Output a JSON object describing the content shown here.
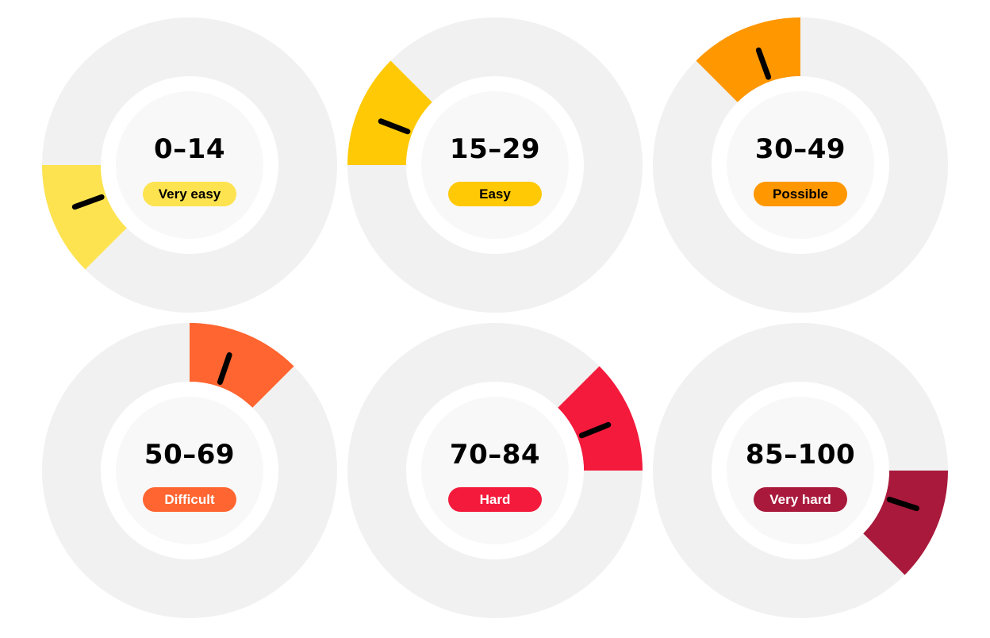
{
  "gauges": [
    {
      "range": "0–14",
      "label": "Very easy",
      "color": "#FDE34F",
      "text_color": "#000000"
    },
    {
      "range": "15–29",
      "label": "Easy",
      "color": "#FFC905",
      "text_color": "#000000"
    },
    {
      "range": "30–49",
      "label": "Possible",
      "color": "#FF9700",
      "text_color": "#000000"
    },
    {
      "range": "50–69",
      "label": "Difficult",
      "color": "#FF6530",
      "text_color": "#FFFFFF"
    },
    {
      "range": "70–84",
      "label": "Hard",
      "color": "#F31A3C",
      "text_color": "#FFFFFF"
    },
    {
      "range": "85–100",
      "label": "Very hard",
      "color": "#A8193B",
      "text_color": "#FFFFFF"
    }
  ],
  "colors": {
    "outer_ring": "#F1F1F1",
    "gap_ring": "#FFFFFF",
    "inner_disc": "#F8F8F8",
    "needle": "#000000"
  }
}
